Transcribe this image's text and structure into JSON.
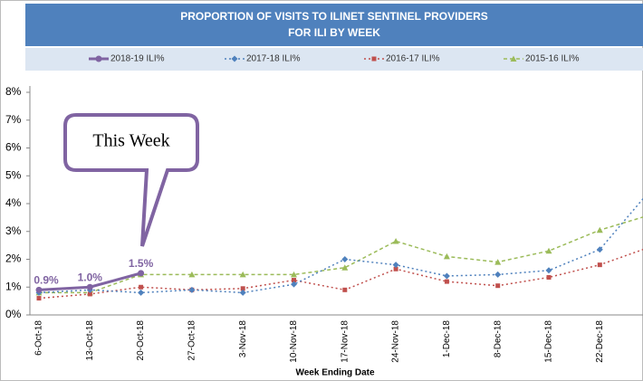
{
  "chart_data": {
    "type": "line",
    "title": [
      "PROPORTION OF VISITS TO ILINET SENTINEL PROVIDERS",
      "FOR ILI BY WEEK"
    ],
    "x_label": "Week Ending Date",
    "annotation": "This Week",
    "categories": [
      "6-Oct-18",
      "13-Oct-18",
      "20-Oct-18",
      "27-Oct-18",
      "3-Nov-18",
      "10-Nov-18",
      "17-Nov-18",
      "24-Nov-18",
      "1-Dec-18",
      "8-Dec-18",
      "15-Dec-18",
      "22-Dec-18",
      null
    ],
    "series": [
      {
        "name": "2018-19 ILI%",
        "color": "#8064a2",
        "dash": "none",
        "marker": "circle",
        "values": [
          0.9,
          1.0,
          1.5,
          null,
          null,
          null,
          null,
          null,
          null,
          null,
          null,
          null,
          null
        ],
        "value_labels": [
          "0.9%",
          "1.0%",
          "1.5%",
          null,
          null,
          null,
          null,
          null,
          null,
          null,
          null,
          null,
          null
        ]
      },
      {
        "name": "2017-18 ILI%",
        "color": "#4f81bd",
        "dash": "2,3",
        "marker": "diamond",
        "values": [
          0.8,
          0.9,
          0.8,
          0.9,
          0.8,
          1.1,
          2.0,
          1.8,
          1.4,
          1.45,
          1.6,
          2.35,
          4.5
        ]
      },
      {
        "name": "2016-17 ILI%",
        "color": "#c0504d",
        "dash": "2,3",
        "marker": "square",
        "values": [
          0.6,
          0.75,
          1.0,
          0.9,
          0.95,
          1.25,
          0.9,
          1.65,
          1.2,
          1.05,
          1.35,
          1.8,
          2.45
        ]
      },
      {
        "name": "2015-16 ILI%",
        "color": "#9bbb59",
        "dash": "4,3",
        "marker": "triangle",
        "values": [
          0.8,
          0.8,
          1.45,
          1.45,
          1.45,
          1.45,
          1.7,
          2.65,
          2.1,
          1.9,
          2.3,
          3.05,
          3.6
        ]
      }
    ],
    "ylim": [
      0,
      8
    ],
    "yticks": [
      {
        "value": 0,
        "label": "0%"
      },
      {
        "value": 1,
        "label": "1%"
      },
      {
        "value": 2,
        "label": "2%"
      },
      {
        "value": 3,
        "label": "3%"
      },
      {
        "value": 4,
        "label": "4%"
      },
      {
        "value": 5,
        "label": "5%"
      },
      {
        "value": 6,
        "label": "6%"
      },
      {
        "value": 7,
        "label": "7%"
      },
      {
        "value": 8,
        "label": "8%"
      }
    ]
  }
}
